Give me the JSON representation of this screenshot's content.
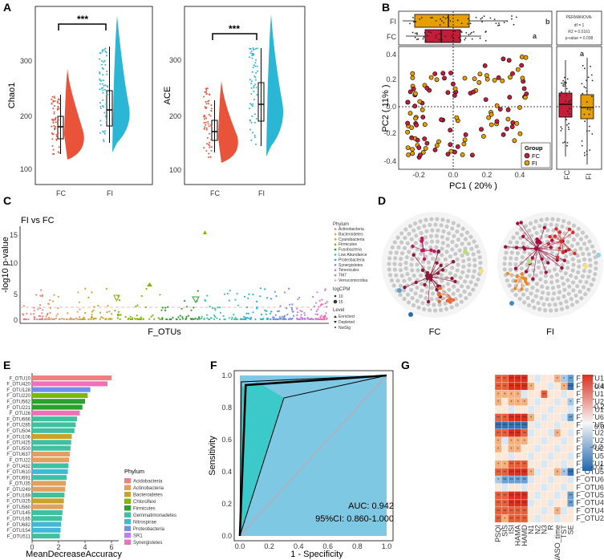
{
  "colors": {
    "fc": "#e8533a",
    "fi": "#2bb6d6",
    "fc_dark": "#c21e3a",
    "fi_orange": "#e69f00",
    "roc_fill": "#7ec8e3",
    "roc_teal": "#3cc9c9"
  },
  "panelA": {
    "label": "A",
    "left": {
      "ylabel": "Chao1",
      "ticks": [
        "100",
        "200",
        "300"
      ],
      "sig": "***"
    },
    "right": {
      "ylabel": "ACE",
      "ticks": [
        "100",
        "200",
        "300"
      ],
      "sig": "***"
    },
    "groups": [
      "FC",
      "FI"
    ]
  },
  "panelB": {
    "label": "B",
    "top_groups": [
      "FI",
      "FC"
    ],
    "top_letters": [
      "b",
      "a"
    ],
    "permanova": {
      "title": "PERMANOVA:",
      "df": "df = 1",
      "r2": "R2 = 0.0161",
      "p": "p-value = 0.038"
    },
    "xlabel": "PC1 ( 20% )",
    "ylabel": "PC2 ( 11% )",
    "xticks": [
      "-0.2",
      "0.0",
      "0.2",
      "0.4"
    ],
    "yticks": [
      "0.4",
      "0.2",
      "0.0",
      "-0.2",
      "-0.4"
    ],
    "legend": {
      "title": "Group",
      "items": [
        "FC",
        "FI"
      ]
    },
    "side_letters": [
      "a",
      "a"
    ],
    "side_groups": [
      "FC",
      "FI"
    ]
  },
  "panelC": {
    "label": "C",
    "title": "FI vs FC",
    "ylabel": "-log10 p-value",
    "xlabel": "F_OTUs",
    "yticks": [
      "0",
      "5",
      "10",
      "15"
    ],
    "legend_phylum_title": "Phylum",
    "phyla": [
      "Actinobacteria",
      "Bacteroidetes",
      "Cyanobacteria",
      "Firmicutes",
      "Fusobacteria",
      "Low Abundance",
      "Proteobacteria",
      "Synergistetes",
      "Tenericutes",
      "TM7",
      "Verrucomicrobia"
    ],
    "logcpm_title": "logCPM",
    "logcpm_items": [
      "10",
      "15"
    ],
    "level_title": "Level",
    "level_items": [
      "Enriched",
      "Depleted",
      "NotSig"
    ]
  },
  "panelD": {
    "label": "D",
    "groups": [
      "FC",
      "FI"
    ]
  },
  "panelE": {
    "label": "E",
    "xlabel": "MeanDecreaseAccuracy",
    "xticks": [
      "0",
      "2",
      "4",
      "6"
    ],
    "otus": [
      "F_OTU10",
      "F_OTU420",
      "F_OTU128",
      "F_OTU220",
      "F_OTU562",
      "F_OTU221",
      "F_OTU26",
      "F_OTU666",
      "F_OTU285",
      "F_OTU504",
      "F_OTU106",
      "F_OTU425",
      "F_OTU500",
      "F_OTU637",
      "F_OTU22",
      "F_OTU432",
      "F_OTU610",
      "F_OTU691",
      "F_OTU35",
      "F_OTU249",
      "F_OTU169",
      "F_OTU325",
      "F_OTU560",
      "F_OTU145",
      "F_OTU165",
      "F_OTU682",
      "F_OTU154",
      "F_OTU511"
    ],
    "values": [
      6.0,
      5.7,
      4.4,
      4.2,
      4.0,
      3.8,
      3.6,
      3.4,
      3.3,
      3.2,
      3.0,
      2.95,
      2.9,
      2.85,
      2.8,
      2.75,
      2.7,
      2.6,
      2.55,
      2.5,
      2.45,
      2.4,
      2.35,
      2.3,
      2.25,
      2.2,
      2.15,
      2.1
    ],
    "phylum_idx": [
      0,
      9,
      7,
      3,
      4,
      4,
      9,
      5,
      5,
      5,
      2,
      5,
      5,
      1,
      1,
      5,
      6,
      5,
      1,
      1,
      5,
      2,
      1,
      5,
      5,
      6,
      6,
      5
    ],
    "legend_title": "Phylum",
    "phyla": [
      "Acidobacteria",
      "Actinobacteria",
      "Bacteroidetes",
      "Chloroflexi",
      "Firmicutes",
      "Gemmatimonadetes",
      "Nitrospirae",
      "Proteobacteria",
      "SR1",
      "Synergistetes"
    ],
    "phylum_colors": [
      "#f08080",
      "#e0a060",
      "#c9a227",
      "#7fb800",
      "#2ca02c",
      "#40c0a0",
      "#3fb9d6",
      "#6f8fe8",
      "#c77ce8",
      "#f06fb8"
    ]
  },
  "panelF": {
    "label": "F",
    "xlabel": "1 - Specificity",
    "ylabel": "Sensitivity",
    "xticks": [
      "0.0",
      "0.2",
      "0.4",
      "0.6",
      "0.8",
      "1.0"
    ],
    "yticks": [
      "0.0",
      "0.2",
      "0.4",
      "0.6",
      "0.8",
      "1.0"
    ],
    "auc": "AUC: 0.942",
    "ci": "95%CI: 0.860-1.000"
  },
  "panelG": {
    "label": "G",
    "rows": [
      "F_OTU10",
      "F_OTU420",
      "F_OTU106",
      "F_OTU285",
      "F_OTU165",
      "F_OTU666",
      "F_OTU562",
      "F_OTU220",
      "F_OTU26",
      "F_OTU249",
      "F_OTU511",
      "F_OTU128",
      "F_OTU504",
      "F_OTU610",
      "F_OTU691",
      "F_OTU500",
      "F_OTU432",
      "F_OTU425",
      "F_OTU22"
    ],
    "cols": [
      "PSQI",
      "SIS",
      "ISI",
      "HAMA",
      "HAMD",
      "N1",
      "N2",
      "N3",
      "R",
      "WASO_time",
      "TST",
      "SE"
    ],
    "legend_ticks": [
      "0.4",
      "0.2",
      "0.0",
      "-0.2",
      "-0.4"
    ],
    "sig_star": "*",
    "sig_2": "**",
    "sig_3": "***"
  }
}
